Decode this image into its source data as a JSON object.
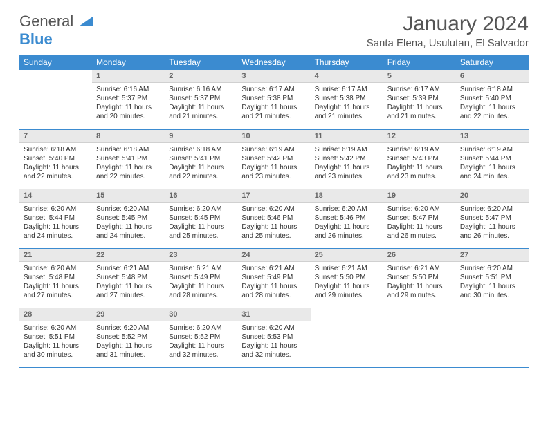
{
  "logo": {
    "line1": "General",
    "line2": "Blue"
  },
  "title": "January 2024",
  "location": "Santa Elena, Usulutan, El Salvador",
  "weekdays": [
    "Sunday",
    "Monday",
    "Tuesday",
    "Wednesday",
    "Thursday",
    "Friday",
    "Saturday"
  ],
  "colors": {
    "header_bg": "#3b8bd0",
    "header_fg": "#ffffff",
    "daynum_bg": "#e9e9e9",
    "text": "#333333"
  },
  "weeks": [
    [
      {
        "n": "",
        "sr": "",
        "ss": "",
        "dl": ""
      },
      {
        "n": "1",
        "sr": "Sunrise: 6:16 AM",
        "ss": "Sunset: 5:37 PM",
        "dl": "Daylight: 11 hours and 20 minutes."
      },
      {
        "n": "2",
        "sr": "Sunrise: 6:16 AM",
        "ss": "Sunset: 5:37 PM",
        "dl": "Daylight: 11 hours and 21 minutes."
      },
      {
        "n": "3",
        "sr": "Sunrise: 6:17 AM",
        "ss": "Sunset: 5:38 PM",
        "dl": "Daylight: 11 hours and 21 minutes."
      },
      {
        "n": "4",
        "sr": "Sunrise: 6:17 AM",
        "ss": "Sunset: 5:38 PM",
        "dl": "Daylight: 11 hours and 21 minutes."
      },
      {
        "n": "5",
        "sr": "Sunrise: 6:17 AM",
        "ss": "Sunset: 5:39 PM",
        "dl": "Daylight: 11 hours and 21 minutes."
      },
      {
        "n": "6",
        "sr": "Sunrise: 6:18 AM",
        "ss": "Sunset: 5:40 PM",
        "dl": "Daylight: 11 hours and 22 minutes."
      }
    ],
    [
      {
        "n": "7",
        "sr": "Sunrise: 6:18 AM",
        "ss": "Sunset: 5:40 PM",
        "dl": "Daylight: 11 hours and 22 minutes."
      },
      {
        "n": "8",
        "sr": "Sunrise: 6:18 AM",
        "ss": "Sunset: 5:41 PM",
        "dl": "Daylight: 11 hours and 22 minutes."
      },
      {
        "n": "9",
        "sr": "Sunrise: 6:18 AM",
        "ss": "Sunset: 5:41 PM",
        "dl": "Daylight: 11 hours and 22 minutes."
      },
      {
        "n": "10",
        "sr": "Sunrise: 6:19 AM",
        "ss": "Sunset: 5:42 PM",
        "dl": "Daylight: 11 hours and 23 minutes."
      },
      {
        "n": "11",
        "sr": "Sunrise: 6:19 AM",
        "ss": "Sunset: 5:42 PM",
        "dl": "Daylight: 11 hours and 23 minutes."
      },
      {
        "n": "12",
        "sr": "Sunrise: 6:19 AM",
        "ss": "Sunset: 5:43 PM",
        "dl": "Daylight: 11 hours and 23 minutes."
      },
      {
        "n": "13",
        "sr": "Sunrise: 6:19 AM",
        "ss": "Sunset: 5:44 PM",
        "dl": "Daylight: 11 hours and 24 minutes."
      }
    ],
    [
      {
        "n": "14",
        "sr": "Sunrise: 6:20 AM",
        "ss": "Sunset: 5:44 PM",
        "dl": "Daylight: 11 hours and 24 minutes."
      },
      {
        "n": "15",
        "sr": "Sunrise: 6:20 AM",
        "ss": "Sunset: 5:45 PM",
        "dl": "Daylight: 11 hours and 24 minutes."
      },
      {
        "n": "16",
        "sr": "Sunrise: 6:20 AM",
        "ss": "Sunset: 5:45 PM",
        "dl": "Daylight: 11 hours and 25 minutes."
      },
      {
        "n": "17",
        "sr": "Sunrise: 6:20 AM",
        "ss": "Sunset: 5:46 PM",
        "dl": "Daylight: 11 hours and 25 minutes."
      },
      {
        "n": "18",
        "sr": "Sunrise: 6:20 AM",
        "ss": "Sunset: 5:46 PM",
        "dl": "Daylight: 11 hours and 26 minutes."
      },
      {
        "n": "19",
        "sr": "Sunrise: 6:20 AM",
        "ss": "Sunset: 5:47 PM",
        "dl": "Daylight: 11 hours and 26 minutes."
      },
      {
        "n": "20",
        "sr": "Sunrise: 6:20 AM",
        "ss": "Sunset: 5:47 PM",
        "dl": "Daylight: 11 hours and 26 minutes."
      }
    ],
    [
      {
        "n": "21",
        "sr": "Sunrise: 6:20 AM",
        "ss": "Sunset: 5:48 PM",
        "dl": "Daylight: 11 hours and 27 minutes."
      },
      {
        "n": "22",
        "sr": "Sunrise: 6:21 AM",
        "ss": "Sunset: 5:48 PM",
        "dl": "Daylight: 11 hours and 27 minutes."
      },
      {
        "n": "23",
        "sr": "Sunrise: 6:21 AM",
        "ss": "Sunset: 5:49 PM",
        "dl": "Daylight: 11 hours and 28 minutes."
      },
      {
        "n": "24",
        "sr": "Sunrise: 6:21 AM",
        "ss": "Sunset: 5:49 PM",
        "dl": "Daylight: 11 hours and 28 minutes."
      },
      {
        "n": "25",
        "sr": "Sunrise: 6:21 AM",
        "ss": "Sunset: 5:50 PM",
        "dl": "Daylight: 11 hours and 29 minutes."
      },
      {
        "n": "26",
        "sr": "Sunrise: 6:21 AM",
        "ss": "Sunset: 5:50 PM",
        "dl": "Daylight: 11 hours and 29 minutes."
      },
      {
        "n": "27",
        "sr": "Sunrise: 6:20 AM",
        "ss": "Sunset: 5:51 PM",
        "dl": "Daylight: 11 hours and 30 minutes."
      }
    ],
    [
      {
        "n": "28",
        "sr": "Sunrise: 6:20 AM",
        "ss": "Sunset: 5:51 PM",
        "dl": "Daylight: 11 hours and 30 minutes."
      },
      {
        "n": "29",
        "sr": "Sunrise: 6:20 AM",
        "ss": "Sunset: 5:52 PM",
        "dl": "Daylight: 11 hours and 31 minutes."
      },
      {
        "n": "30",
        "sr": "Sunrise: 6:20 AM",
        "ss": "Sunset: 5:52 PM",
        "dl": "Daylight: 11 hours and 32 minutes."
      },
      {
        "n": "31",
        "sr": "Sunrise: 6:20 AM",
        "ss": "Sunset: 5:53 PM",
        "dl": "Daylight: 11 hours and 32 minutes."
      },
      {
        "n": "",
        "sr": "",
        "ss": "",
        "dl": ""
      },
      {
        "n": "",
        "sr": "",
        "ss": "",
        "dl": ""
      },
      {
        "n": "",
        "sr": "",
        "ss": "",
        "dl": ""
      }
    ]
  ]
}
